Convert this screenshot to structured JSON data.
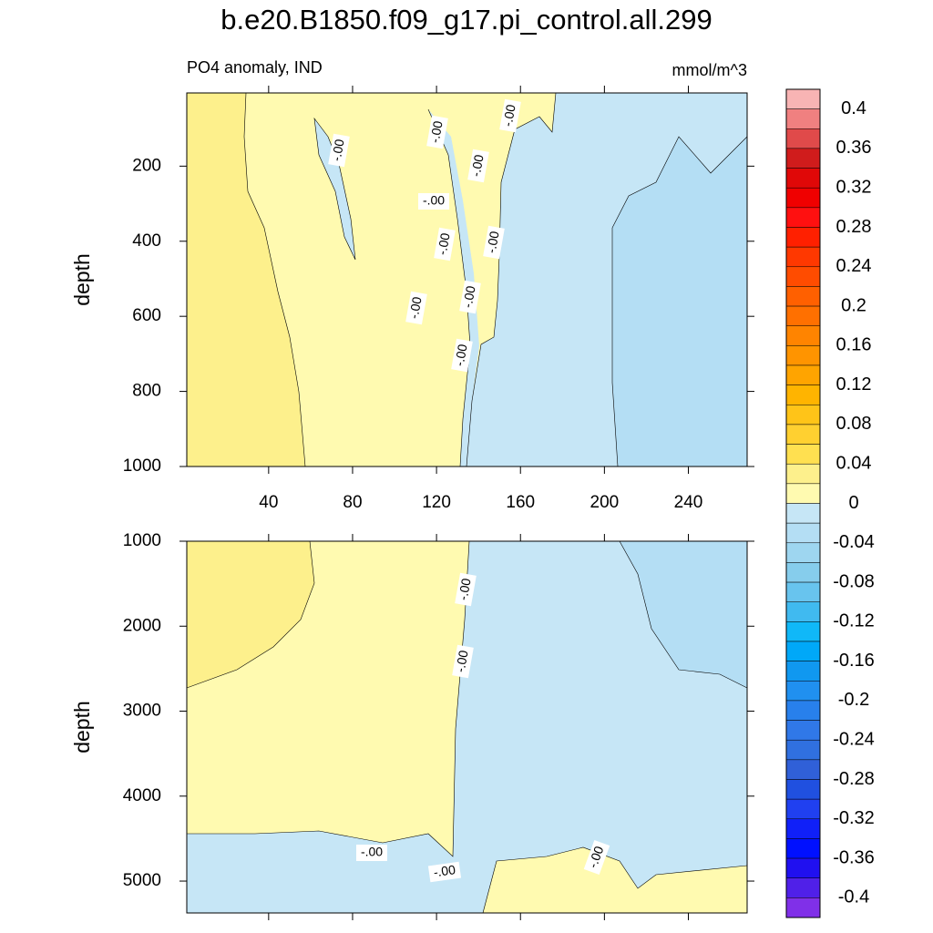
{
  "title": "b.e20.B1850.f09_g17.pi_control.all.299",
  "chart_data": [
    {
      "type": "contour",
      "subtitle": "PO4 anomaly, IND",
      "units": "mmol/m^3",
      "ylabel": "depth",
      "xlim": [
        1,
        268
      ],
      "xticks": [
        40,
        80,
        120,
        160,
        200,
        240
      ],
      "xtick_labels": true,
      "ylim": [
        5,
        1000
      ],
      "yticks": [
        200,
        400,
        600,
        800,
        1000
      ],
      "y_inverted": true,
      "contour_labels": [
        "-.00",
        "-.00",
        "-.00",
        "-.00",
        "-.00",
        "-.00",
        "-.00",
        "-.00",
        "-.00",
        "-.00"
      ]
    },
    {
      "type": "contour",
      "ylabel": "depth",
      "xlim": [
        1,
        268
      ],
      "xticks": [
        40,
        80,
        120,
        160,
        200,
        240
      ],
      "xtick_labels": false,
      "ylim": [
        1000,
        5375
      ],
      "yticks": [
        1000,
        2000,
        3000,
        4000,
        5000
      ],
      "y_inverted": true,
      "contour_labels": [
        "-.00",
        "-.00",
        "-.00",
        "-.00",
        "-.00"
      ]
    }
  ],
  "colorbar": {
    "lim": [
      -0.42,
      0.42
    ],
    "ticks": [
      0.4,
      0.36,
      0.32,
      0.28,
      0.24,
      0.2,
      0.16,
      0.12,
      0.08,
      0.04,
      0,
      -0.04,
      -0.08,
      -0.12,
      -0.16,
      -0.2,
      -0.24,
      -0.28,
      -0.32,
      -0.36,
      -0.4
    ],
    "colors": [
      "#f8b4b4",
      "#f08080",
      "#e04a4a",
      "#d01c1c",
      "#e00808",
      "#f00000",
      "#ff1010",
      "#ff2000",
      "#ff3800",
      "#ff4c00",
      "#ff6000",
      "#ff7000",
      "#ff8400",
      "#ff9400",
      "#ffa400",
      "#ffb400",
      "#ffc418",
      "#ffd030",
      "#ffe050",
      "#fdf08c",
      "#fffab0",
      "#c6e6f6",
      "#b4def4",
      "#9ed6f0",
      "#86cdec",
      "#68c4ee",
      "#40baf0",
      "#10b8f8",
      "#00a8f8",
      "#1098f0",
      "#2090f0",
      "#2880ec",
      "#3078e8",
      "#3070e0",
      "#3060d8",
      "#2050e0",
      "#2040f0",
      "#1020f8",
      "#0010ff",
      "#2010f0",
      "#5020e8",
      "#8030e8"
    ]
  }
}
